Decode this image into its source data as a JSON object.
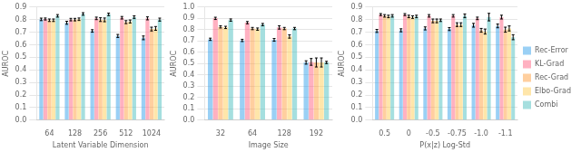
{
  "chart_data": [
    {
      "type": "bar",
      "x_label": "Latent Variable Dimension",
      "y_label": "AUROC",
      "categories": [
        "64",
        "128",
        "256",
        "512",
        "1024"
      ],
      "series": [
        {
          "name": "Rec-Error",
          "values": [
            0.802,
            0.775,
            0.71,
            0.67,
            0.655
          ],
          "errors": [
            0.01,
            0.012,
            0.01,
            0.012,
            0.015
          ]
        },
        {
          "name": "KL-Grad",
          "values": [
            0.805,
            0.8,
            0.81,
            0.815,
            0.81
          ],
          "errors": [
            0.008,
            0.01,
            0.01,
            0.01,
            0.012
          ]
        },
        {
          "name": "Rec-Grad",
          "values": [
            0.795,
            0.8,
            0.8,
            0.78,
            0.725
          ],
          "errors": [
            0.01,
            0.01,
            0.015,
            0.012,
            0.015
          ]
        },
        {
          "name": "Elbo-Grad",
          "values": [
            0.795,
            0.803,
            0.798,
            0.785,
            0.73
          ],
          "errors": [
            0.01,
            0.01,
            0.015,
            0.012,
            0.015
          ]
        },
        {
          "name": "Combi",
          "values": [
            0.83,
            0.845,
            0.842,
            0.82,
            0.8
          ],
          "errors": [
            0.01,
            0.01,
            0.01,
            0.01,
            0.012
          ]
        }
      ],
      "ylim": [
        0.0,
        0.9
      ],
      "yticks": [
        {
          "value": 0.0,
          "label": "0.0"
        },
        0.1,
        0.2,
        0.3,
        0.4,
        0.5,
        0.6,
        0.7,
        0.8,
        0.9
      ],
      "grid": true
    },
    {
      "type": "bar",
      "x_label": "Image Size",
      "y_label": "AUROC",
      "categories": [
        "32",
        "64",
        "128",
        "192"
      ],
      "series": [
        {
          "name": "Rec-Error",
          "values": [
            0.715,
            0.705,
            0.71,
            0.51
          ],
          "errors": [
            0.01,
            0.01,
            0.012,
            0.015
          ]
        },
        {
          "name": "KL-Grad",
          "values": [
            0.9,
            0.862,
            0.82,
            0.515
          ],
          "errors": [
            0.01,
            0.01,
            0.015,
            0.03
          ]
        },
        {
          "name": "Rec-Grad",
          "values": [
            0.825,
            0.81,
            0.81,
            0.51
          ],
          "errors": [
            0.01,
            0.01,
            0.01,
            0.04
          ]
        },
        {
          "name": "Elbo-Grad",
          "values": [
            0.82,
            0.805,
            0.74,
            0.51
          ],
          "errors": [
            0.01,
            0.01,
            0.015,
            0.04
          ]
        },
        {
          "name": "Combi",
          "values": [
            0.885,
            0.845,
            0.81,
            0.51
          ],
          "errors": [
            0.01,
            0.01,
            0.01,
            0.01
          ]
        }
      ],
      "ylim": [
        0.0,
        1.0
      ],
      "yticks": [
        {
          "value": 0.0,
          "label": "0.0"
        },
        0.1,
        0.2,
        0.3,
        0.4,
        0.5,
        0.6,
        0.7,
        0.8,
        0.9,
        {
          "value": 1.0,
          "label": "1.0"
        }
      ],
      "grid": true
    },
    {
      "type": "bar",
      "x_label": "P(x|z) Log-Std",
      "y_label": "AUROC",
      "categories": [
        "0.5",
        "0",
        "-0.5",
        "-0.75",
        "-1.0",
        "-1.1"
      ],
      "series": [
        {
          "name": "Rec-Error",
          "values": [
            0.71,
            0.715,
            0.73,
            0.725,
            0.755,
            0.75
          ],
          "errors": [
            0.012,
            0.012,
            0.012,
            0.012,
            0.015,
            0.015
          ]
        },
        {
          "name": "KL-Grad",
          "values": [
            0.84,
            0.84,
            0.83,
            0.83,
            0.81,
            0.82
          ],
          "errors": [
            0.008,
            0.008,
            0.01,
            0.01,
            0.01,
            0.015
          ]
        },
        {
          "name": "Rec-Grad",
          "values": [
            0.83,
            0.825,
            0.79,
            0.76,
            0.715,
            0.72
          ],
          "errors": [
            0.01,
            0.01,
            0.015,
            0.015,
            0.015,
            0.02
          ]
        },
        {
          "name": "Elbo-Grad",
          "values": [
            0.825,
            0.82,
            0.79,
            0.76,
            0.705,
            0.73
          ],
          "errors": [
            0.01,
            0.01,
            0.015,
            0.015,
            0.02,
            0.02
          ]
        },
        {
          "name": "Combi",
          "values": [
            0.83,
            0.825,
            0.795,
            0.83,
            0.82,
            0.66
          ],
          "errors": [
            0.01,
            0.01,
            0.01,
            0.015,
            0.03,
            0.02
          ]
        }
      ],
      "ylim": [
        0.0,
        0.9
      ],
      "yticks": [
        {
          "value": 0.0,
          "label": "0.0"
        },
        0.1,
        0.2,
        0.3,
        0.4,
        0.5,
        0.6,
        0.7,
        0.8,
        0.9
      ],
      "grid": true,
      "legend": "right"
    }
  ]
}
